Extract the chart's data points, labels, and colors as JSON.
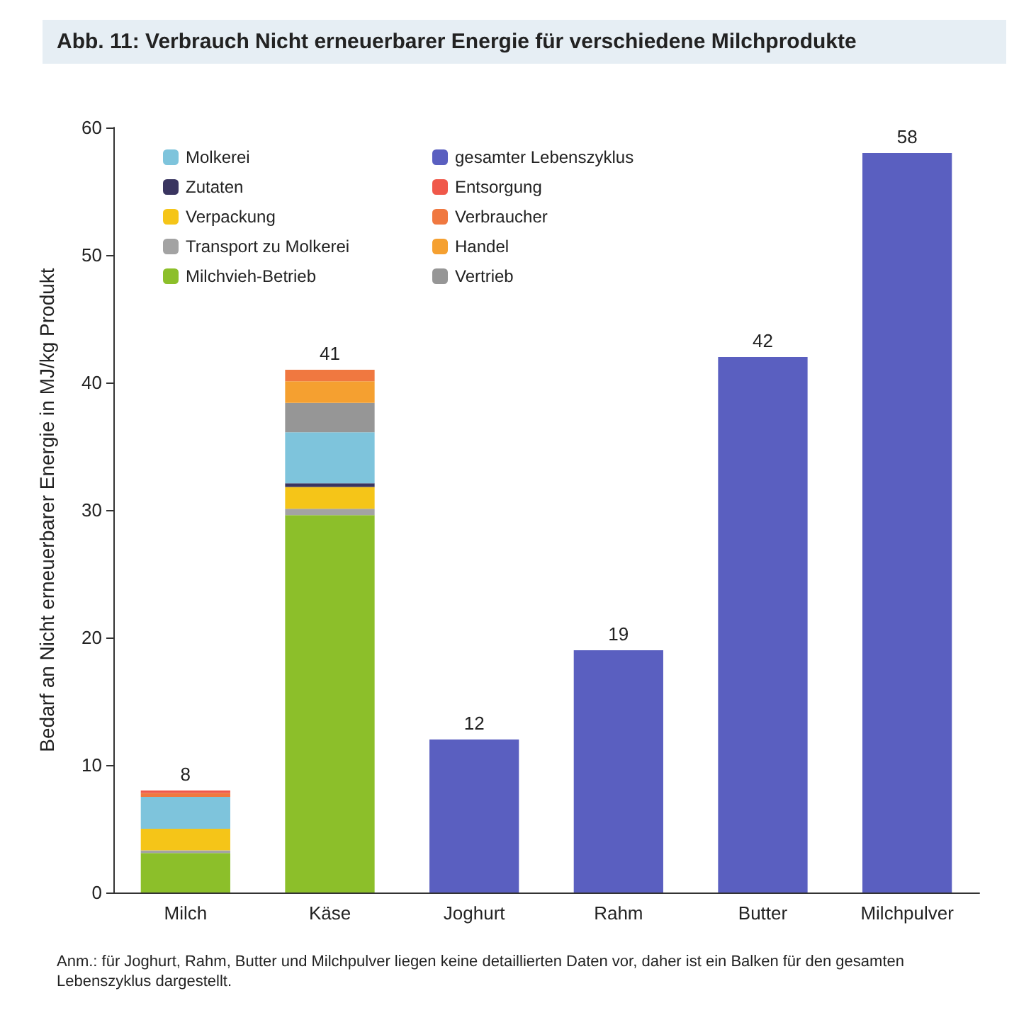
{
  "chart_data": {
    "type": "bar",
    "title": "Abb. 11: Verbrauch Nicht erneuerbarer Energie für verschiedene Milchprodukte",
    "ylabel": "Bedarf an Nicht erneuerbarer Energie in MJ/kg Produkt",
    "annotations": [
      "Anm.: für Joghurt, Rahm, Butter und Milchpulver liegen keine detaillierten Daten vor, daher ist ein Balken für den gesamten Lebenszyklus dargestellt."
    ],
    "categories": [
      "Milch",
      "Käse",
      "Joghurt",
      "Rahm",
      "Butter",
      "Milchpulver"
    ],
    "stacked": true,
    "series": [
      {
        "name": "Milchvieh-Betrieb",
        "color": "#8cbf2a",
        "values": [
          3.1,
          29.6,
          null,
          null,
          null,
          null
        ]
      },
      {
        "name": "Transport zu Molkerei",
        "color": "#a3a3a3",
        "values": [
          0.2,
          0.5,
          null,
          null,
          null,
          null
        ]
      },
      {
        "name": "Verpackung",
        "color": "#f5c518",
        "values": [
          1.7,
          1.7,
          null,
          null,
          null,
          null
        ]
      },
      {
        "name": "Zutaten",
        "color": "#3a3560",
        "values": [
          null,
          0.3,
          null,
          null,
          null,
          null
        ]
      },
      {
        "name": "Molkerei",
        "color": "#7ec4dc",
        "values": [
          2.5,
          4.0,
          null,
          null,
          null,
          null
        ]
      },
      {
        "name": "Vertrieb",
        "color": "#969696",
        "values": [
          null,
          2.3,
          null,
          null,
          null,
          null
        ]
      },
      {
        "name": "Handel",
        "color": "#f5a030",
        "values": [
          null,
          1.7,
          null,
          null,
          null,
          null
        ]
      },
      {
        "name": "Verbraucher",
        "color": "#f07840",
        "values": [
          0.3,
          0.9,
          null,
          null,
          null,
          null
        ]
      },
      {
        "name": "Entsorgung",
        "color": "#f0584a",
        "values": [
          0.2,
          null,
          null,
          null,
          null,
          null
        ]
      },
      {
        "name": "gesamter Lebenszyklus",
        "color": "#5a5fc0",
        "values": [
          null,
          null,
          12,
          19,
          42,
          58
        ]
      }
    ],
    "totals": [
      "8",
      "41",
      "12",
      "19",
      "42",
      "58"
    ],
    "ylim": [
      0,
      60
    ],
    "yticks": [
      0,
      10,
      20,
      30,
      40,
      50,
      60
    ],
    "grid": false,
    "legend": "top left"
  }
}
